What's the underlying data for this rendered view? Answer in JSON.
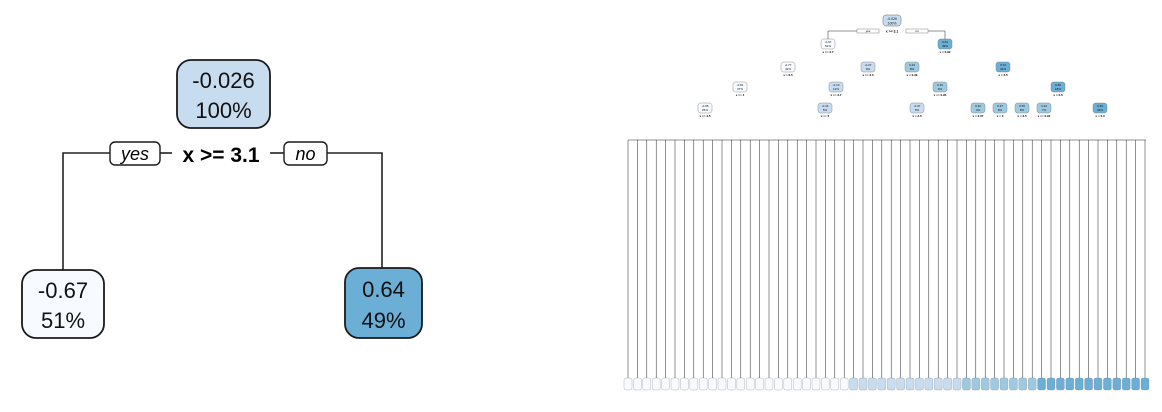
{
  "small_tree": {
    "root": {
      "value": "-0.026",
      "percent": "100%",
      "fill": "#c8dcf0"
    },
    "split": "x >= 3.1",
    "yes_label": "yes",
    "no_label": "no",
    "left": {
      "value": "-0.67",
      "percent": "51%",
      "fill": "#f7fbff"
    },
    "right": {
      "value": "0.64",
      "percent": "49%",
      "fill": "#6baed6"
    }
  },
  "large_tree": {
    "root": {
      "value": "-0.026",
      "percent": "100%"
    },
    "yes_label": "yes",
    "no_label": "no",
    "root_split": "x >= 3.1",
    "level1": [
      {
        "value": "-0.67",
        "percent": "51%",
        "split": "x >= 3.7"
      },
      {
        "value": "0.64",
        "percent": "49%",
        "split": "x < 0.92"
      }
    ],
    "level2": [
      {
        "value": "-0.77",
        "percent": "42%",
        "split": "x < 6.5"
      },
      {
        "value": "-0.27",
        "percent": "9%",
        "split": "x >= 3.3"
      },
      {
        "value": "0.23",
        "percent": "8%",
        "split": "x < 0.39"
      },
      {
        "value": "0.72",
        "percent": "41%",
        "split": "x < 2.5"
      }
    ],
    "level3": [
      {
        "value": "-0.81",
        "percent": "37%",
        "split": "x >= 4"
      },
      {
        "value": "-0.13",
        "percent": "12%",
        "split": "x >= 3.7"
      },
      {
        "value": "0.15",
        "percent": "6%",
        "split": "x >= 0.95"
      },
      {
        "value": "0.86",
        "percent": "18%",
        "split": "x < 0.6"
      }
    ],
    "level4": [
      {
        "value": "-0.98",
        "percent": "25%",
        "split": "x >= 4.5"
      },
      {
        "value": "-0.44",
        "percent": "5%",
        "split": "x >= 5"
      },
      {
        "value": "-0.37",
        "percent": "5%",
        "split": "x < 3.5"
      },
      {
        "value": "0.32",
        "percent": "4%",
        "split": "x < 0.07"
      },
      {
        "value": "0.37",
        "percent": "8%",
        "split": "x < 3"
      },
      {
        "value": "0.56",
        "percent": "8%",
        "split": "x < 2.5"
      },
      {
        "value": "0.24",
        "percent": "7%",
        "split": "x >= 0.94"
      },
      {
        "value": "0.93",
        "percent": "32%",
        "split": "x < 2.3"
      }
    ]
  },
  "chart_data": {
    "type": "table",
    "title": "",
    "description_free": true,
    "small_tree_nodes": [
      {
        "id": 1,
        "value": -0.026,
        "percent": 100
      },
      {
        "id": 2,
        "value": -0.67,
        "percent": 51
      },
      {
        "id": 3,
        "value": 0.64,
        "percent": 49
      }
    ],
    "root_split": "x >= 3.1"
  },
  "colors": {
    "lightest": "#f7fbff",
    "light": "#c8dcf0",
    "mid": "#9ecae1",
    "dark": "#6baed6",
    "outline": "#1a1a1a"
  }
}
